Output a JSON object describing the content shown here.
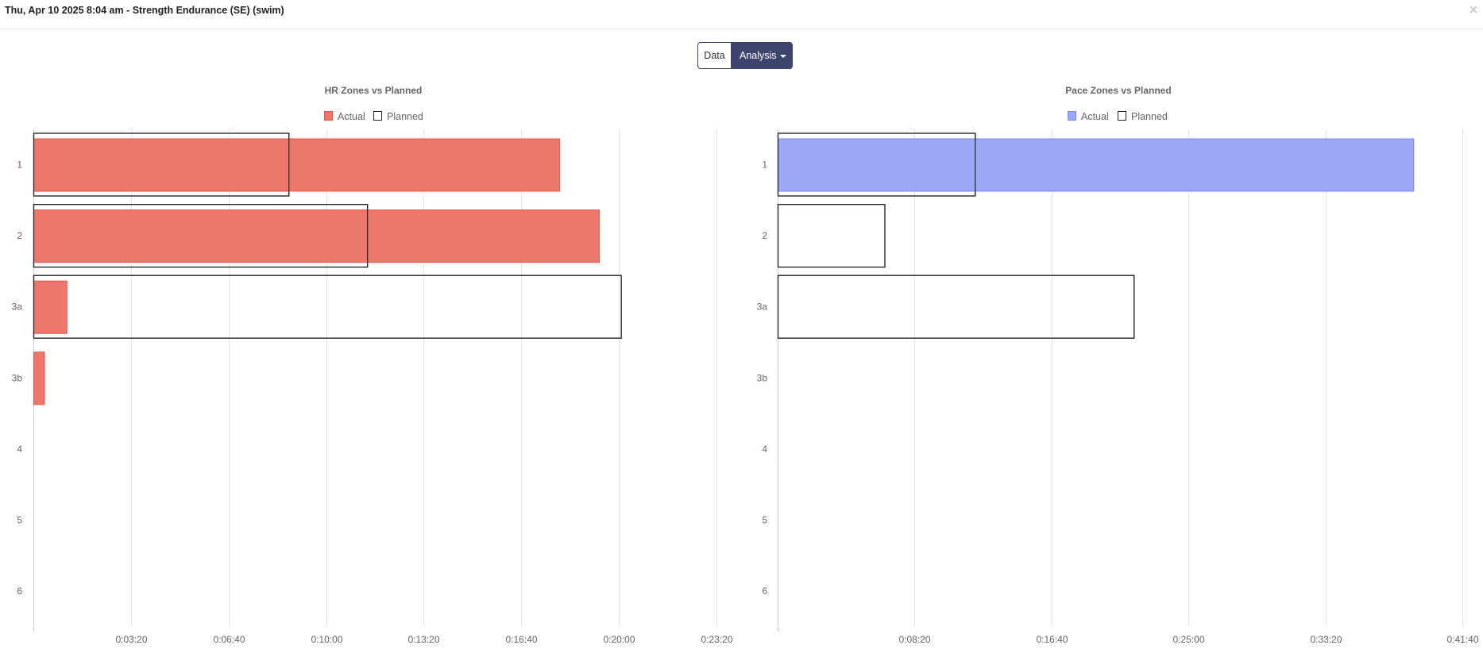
{
  "header": {
    "title": "Thu, Apr 10 2025 8:04 am - Strength Endurance (SE) (swim)",
    "close_glyph": "×"
  },
  "toggle": {
    "data_label": "Data",
    "analysis_label": "Analysis"
  },
  "chart_data": [
    {
      "type": "bar",
      "orientation": "horizontal",
      "title": "HR Zones vs Planned",
      "categories": [
        "1",
        "2",
        "3a",
        "3b",
        "4",
        "5",
        "6"
      ],
      "x_unit": "seconds",
      "xlim": [
        0,
        1400
      ],
      "x_ticks": [
        200,
        400,
        600,
        800,
        1000,
        1200,
        1400
      ],
      "x_tick_labels": [
        "0:03:20",
        "0:06:40",
        "0:10:00",
        "0:13:20",
        "0:16:40",
        "0:20:00",
        "0:23:20"
      ],
      "grid": true,
      "legend_position": "top",
      "series": [
        {
          "name": "Actual",
          "color": "#ee776d",
          "stroke": "#e05548",
          "filled": true,
          "values": [
            1078,
            1159,
            68,
            22,
            0,
            0,
            0
          ]
        },
        {
          "name": "Planned",
          "color": "#222222",
          "filled": false,
          "values": [
            523,
            684,
            1204,
            0,
            0,
            0,
            0
          ]
        }
      ]
    },
    {
      "type": "bar",
      "orientation": "horizontal",
      "title": "Pace Zones vs Planned",
      "categories": [
        "1",
        "2",
        "3a",
        "3b",
        "4",
        "5",
        "6"
      ],
      "x_unit": "seconds",
      "xlim": [
        0,
        2500
      ],
      "x_ticks": [
        500,
        1000,
        1500,
        2000,
        2500
      ],
      "x_tick_labels": [
        "0:08:20",
        "0:16:40",
        "0:25:00",
        "0:33:20",
        "0:41:40"
      ],
      "grid": true,
      "legend_position": "top",
      "series": [
        {
          "name": "Actual",
          "color": "#9ca8f5",
          "stroke": "#7a87e8",
          "filled": true,
          "values": [
            2321,
            0,
            0,
            0,
            0,
            0,
            0
          ]
        },
        {
          "name": "Planned",
          "color": "#222222",
          "filled": false,
          "values": [
            720,
            390,
            1300,
            0,
            0,
            0,
            0
          ]
        }
      ]
    }
  ]
}
